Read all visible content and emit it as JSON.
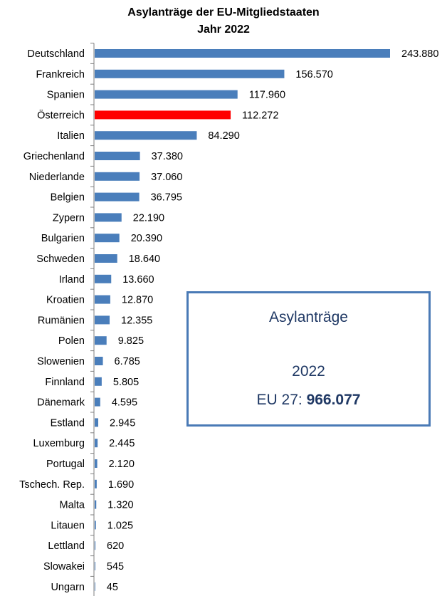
{
  "chart_data": {
    "type": "bar",
    "orientation": "horizontal",
    "title": "Asylanträge der EU-Mitgliedstaaten",
    "subtitle": "Jahr 2022",
    "categories": [
      "Deutschland",
      "Frankreich",
      "Spanien",
      "Österreich",
      "Italien",
      "Griechenland",
      "Niederlande",
      "Belgien",
      "Zypern",
      "Bulgarien",
      "Schweden",
      "Irland",
      "Kroatien",
      "Rumänien",
      "Polen",
      "Slowenien",
      "Finnland",
      "Dänemark",
      "Estland",
      "Luxemburg",
      "Portugal",
      "Tschech. Rep.",
      "Malta",
      "Litauen",
      "Lettland",
      "Slowakei",
      "Ungarn"
    ],
    "values": [
      243880,
      156570,
      117960,
      112272,
      84290,
      37380,
      37060,
      36795,
      22190,
      20390,
      18640,
      13660,
      12870,
      12355,
      9825,
      6785,
      5805,
      4595,
      2945,
      2445,
      2120,
      1690,
      1320,
      1025,
      620,
      545,
      45
    ],
    "value_labels": [
      "243.880",
      "156.570",
      "117.960",
      "112.272",
      "84.290",
      "37.380",
      "37.060",
      "36.795",
      "22.190",
      "20.390",
      "18.640",
      "13.660",
      "12.870",
      "12.355",
      "9.825",
      "6.785",
      "5.805",
      "4.595",
      "2.945",
      "2.445",
      "2.120",
      "1.690",
      "1.320",
      "1.025",
      "620",
      "545",
      "45"
    ],
    "xlim": [
      0,
      243880
    ],
    "bar_color": "#4a7ebb",
    "highlight": {
      "category": "Österreich",
      "color": "#ff0000"
    },
    "grid": false,
    "legend": "none"
  },
  "infobox": {
    "line1": "Asylanträge",
    "line2": "2022",
    "line3_prefix": "EU 27: ",
    "line3_value": "966.077"
  }
}
